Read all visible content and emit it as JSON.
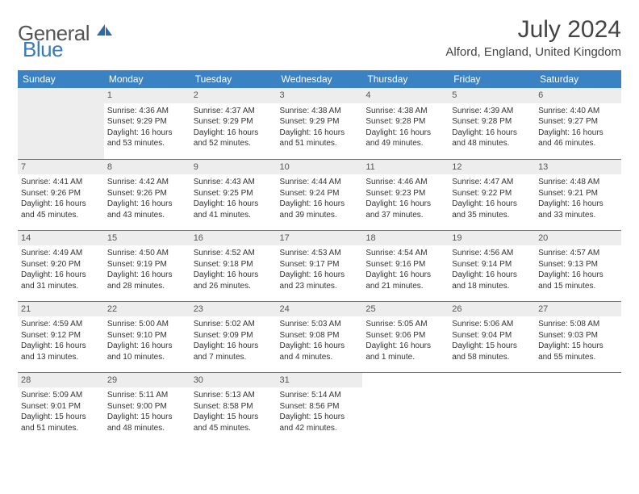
{
  "logo": {
    "part1": "General",
    "part2": "Blue"
  },
  "title": "July 2024",
  "location": "Alford, England, United Kingdom",
  "colors": {
    "header_bg": "#3a82c4",
    "header_text": "#ffffff",
    "daynum_bg": "#ededed",
    "border": "#3a82c4",
    "logo_blue": "#3a7ab8",
    "logo_gray": "#555555"
  },
  "weekdays": [
    "Sunday",
    "Monday",
    "Tuesday",
    "Wednesday",
    "Thursday",
    "Friday",
    "Saturday"
  ],
  "weeks": [
    [
      null,
      {
        "n": "1",
        "sr": "4:36 AM",
        "ss": "9:29 PM",
        "dl": "16 hours and 53 minutes."
      },
      {
        "n": "2",
        "sr": "4:37 AM",
        "ss": "9:29 PM",
        "dl": "16 hours and 52 minutes."
      },
      {
        "n": "3",
        "sr": "4:38 AM",
        "ss": "9:29 PM",
        "dl": "16 hours and 51 minutes."
      },
      {
        "n": "4",
        "sr": "4:38 AM",
        "ss": "9:28 PM",
        "dl": "16 hours and 49 minutes."
      },
      {
        "n": "5",
        "sr": "4:39 AM",
        "ss": "9:28 PM",
        "dl": "16 hours and 48 minutes."
      },
      {
        "n": "6",
        "sr": "4:40 AM",
        "ss": "9:27 PM",
        "dl": "16 hours and 46 minutes."
      }
    ],
    [
      {
        "n": "7",
        "sr": "4:41 AM",
        "ss": "9:26 PM",
        "dl": "16 hours and 45 minutes."
      },
      {
        "n": "8",
        "sr": "4:42 AM",
        "ss": "9:26 PM",
        "dl": "16 hours and 43 minutes."
      },
      {
        "n": "9",
        "sr": "4:43 AM",
        "ss": "9:25 PM",
        "dl": "16 hours and 41 minutes."
      },
      {
        "n": "10",
        "sr": "4:44 AM",
        "ss": "9:24 PM",
        "dl": "16 hours and 39 minutes."
      },
      {
        "n": "11",
        "sr": "4:46 AM",
        "ss": "9:23 PM",
        "dl": "16 hours and 37 minutes."
      },
      {
        "n": "12",
        "sr": "4:47 AM",
        "ss": "9:22 PM",
        "dl": "16 hours and 35 minutes."
      },
      {
        "n": "13",
        "sr": "4:48 AM",
        "ss": "9:21 PM",
        "dl": "16 hours and 33 minutes."
      }
    ],
    [
      {
        "n": "14",
        "sr": "4:49 AM",
        "ss": "9:20 PM",
        "dl": "16 hours and 31 minutes."
      },
      {
        "n": "15",
        "sr": "4:50 AM",
        "ss": "9:19 PM",
        "dl": "16 hours and 28 minutes."
      },
      {
        "n": "16",
        "sr": "4:52 AM",
        "ss": "9:18 PM",
        "dl": "16 hours and 26 minutes."
      },
      {
        "n": "17",
        "sr": "4:53 AM",
        "ss": "9:17 PM",
        "dl": "16 hours and 23 minutes."
      },
      {
        "n": "18",
        "sr": "4:54 AM",
        "ss": "9:16 PM",
        "dl": "16 hours and 21 minutes."
      },
      {
        "n": "19",
        "sr": "4:56 AM",
        "ss": "9:14 PM",
        "dl": "16 hours and 18 minutes."
      },
      {
        "n": "20",
        "sr": "4:57 AM",
        "ss": "9:13 PM",
        "dl": "16 hours and 15 minutes."
      }
    ],
    [
      {
        "n": "21",
        "sr": "4:59 AM",
        "ss": "9:12 PM",
        "dl": "16 hours and 13 minutes."
      },
      {
        "n": "22",
        "sr": "5:00 AM",
        "ss": "9:10 PM",
        "dl": "16 hours and 10 minutes."
      },
      {
        "n": "23",
        "sr": "5:02 AM",
        "ss": "9:09 PM",
        "dl": "16 hours and 7 minutes."
      },
      {
        "n": "24",
        "sr": "5:03 AM",
        "ss": "9:08 PM",
        "dl": "16 hours and 4 minutes."
      },
      {
        "n": "25",
        "sr": "5:05 AM",
        "ss": "9:06 PM",
        "dl": "16 hours and 1 minute."
      },
      {
        "n": "26",
        "sr": "5:06 AM",
        "ss": "9:04 PM",
        "dl": "15 hours and 58 minutes."
      },
      {
        "n": "27",
        "sr": "5:08 AM",
        "ss": "9:03 PM",
        "dl": "15 hours and 55 minutes."
      }
    ],
    [
      {
        "n": "28",
        "sr": "5:09 AM",
        "ss": "9:01 PM",
        "dl": "15 hours and 51 minutes."
      },
      {
        "n": "29",
        "sr": "5:11 AM",
        "ss": "9:00 PM",
        "dl": "15 hours and 48 minutes."
      },
      {
        "n": "30",
        "sr": "5:13 AM",
        "ss": "8:58 PM",
        "dl": "15 hours and 45 minutes."
      },
      {
        "n": "31",
        "sr": "5:14 AM",
        "ss": "8:56 PM",
        "dl": "15 hours and 42 minutes."
      },
      null,
      null,
      null
    ]
  ],
  "labels": {
    "sunrise": "Sunrise:",
    "sunset": "Sunset:",
    "daylight": "Daylight:"
  }
}
